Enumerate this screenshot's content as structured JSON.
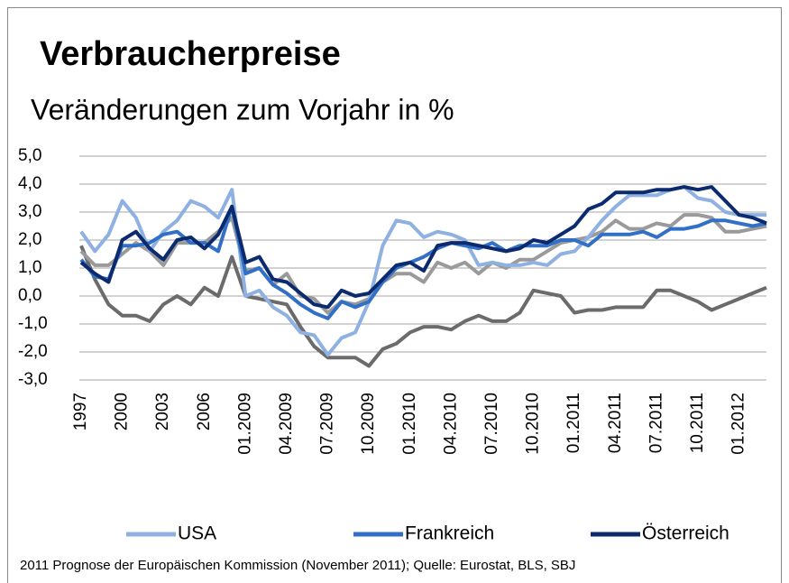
{
  "chart_data": {
    "type": "line",
    "title": "Verbraucherpreise",
    "subtitle": "Veränderungen zum Vorjahr in %",
    "footnote": "2011 Prognose der Europäischen Kommission (November 2011); Quelle: Eurostat, BLS, SBJ",
    "categories": [
      "1997",
      null,
      null,
      "2000",
      null,
      null,
      "2003",
      null,
      null,
      "2006",
      null,
      null,
      "01.2009",
      null,
      null,
      "04.2009",
      null,
      null,
      "07.2009",
      null,
      null,
      "10.2009",
      null,
      null,
      "01.2010",
      null,
      null,
      "04.2010",
      null,
      null,
      "07.2010",
      null,
      null,
      "10.2010",
      null,
      null,
      "01.2011",
      null,
      null,
      "04.2011",
      null,
      null,
      "07.2011",
      null,
      null,
      "10.2011",
      null,
      null,
      "01.2012",
      null,
      null
    ],
    "ylim": [
      -3,
      5
    ],
    "yticks": [
      {
        "value": -3,
        "label": "-3,0"
      },
      {
        "value": -2,
        "label": "-2,0"
      },
      {
        "value": -1,
        "label": "-1,0"
      },
      {
        "value": 0,
        "label": "0,0"
      },
      {
        "value": 1,
        "label": "1,0"
      },
      {
        "value": 2,
        "label": "2,0"
      },
      {
        "value": 3,
        "label": "3,0"
      },
      {
        "value": 4,
        "label": "4,0"
      },
      {
        "value": 5,
        "label": "5,0"
      }
    ],
    "grid": true,
    "legend": "bottom",
    "series": [
      {
        "color": "#6b6b6b",
        "values": [
          1.8,
          0.6,
          -0.3,
          -0.7,
          -0.7,
          -0.9,
          -0.3,
          0.0,
          -0.3,
          0.3,
          0.0,
          1.4,
          0.0,
          -0.1,
          -0.2,
          -0.3,
          -1.1,
          -1.8,
          -2.2,
          -2.2,
          -2.2,
          -2.5,
          -1.9,
          -1.7,
          -1.3,
          -1.1,
          -1.1,
          -1.2,
          -0.9,
          -0.7,
          -0.9,
          -0.9,
          -0.6,
          0.2,
          0.1,
          0.0,
          -0.6,
          -0.5,
          -0.5,
          -0.4,
          -0.4,
          -0.4,
          0.2,
          0.2,
          0.0,
          -0.2,
          -0.5,
          -0.3,
          -0.1,
          0.1,
          0.3
        ]
      },
      {
        "color": "#9a9a9a",
        "values": [
          1.6,
          1.1,
          1.1,
          1.5,
          1.9,
          1.6,
          1.1,
          1.9,
          1.9,
          1.9,
          2.3,
          2.8,
          0.9,
          1.0,
          0.4,
          0.8,
          0.0,
          -0.1,
          -0.6,
          -0.2,
          -0.3,
          -0.1,
          0.5,
          0.8,
          0.8,
          0.5,
          1.2,
          1.0,
          1.2,
          0.8,
          1.2,
          1.0,
          1.3,
          1.3,
          1.6,
          1.9,
          2.0,
          2.1,
          2.3,
          2.7,
          2.4,
          2.4,
          2.6,
          2.5,
          2.9,
          2.9,
          2.8,
          2.3,
          2.3,
          2.4,
          2.5
        ]
      },
      {
        "name": "USA",
        "color": "#8fb1e2",
        "values": [
          2.3,
          1.6,
          2.2,
          3.4,
          2.8,
          1.6,
          2.3,
          2.7,
          3.4,
          3.2,
          2.8,
          3.8,
          0.0,
          0.2,
          -0.4,
          -0.7,
          -1.3,
          -1.4,
          -2.1,
          -1.5,
          -1.3,
          -0.2,
          1.8,
          2.7,
          2.6,
          2.1,
          2.3,
          2.2,
          2.0,
          1.1,
          1.2,
          1.1,
          1.1,
          1.2,
          1.1,
          1.5,
          1.6,
          2.1,
          2.7,
          3.2,
          3.6,
          3.6,
          3.6,
          3.8,
          3.9,
          3.5,
          3.4,
          3.0,
          2.9,
          2.9,
          2.9
        ]
      },
      {
        "name": "Frankreich",
        "color": "#3170c6",
        "values": [
          1.3,
          0.7,
          0.6,
          1.8,
          1.8,
          1.9,
          2.2,
          2.3,
          1.9,
          1.9,
          1.6,
          3.2,
          0.8,
          1.0,
          0.4,
          0.1,
          -0.3,
          -0.6,
          -0.8,
          -0.2,
          -0.4,
          -0.2,
          0.5,
          1.0,
          1.2,
          1.4,
          1.7,
          1.9,
          1.8,
          1.7,
          1.9,
          1.6,
          1.8,
          1.8,
          1.8,
          2.0,
          2.0,
          1.8,
          2.2,
          2.2,
          2.2,
          2.3,
          2.1,
          2.4,
          2.4,
          2.5,
          2.7,
          2.7,
          2.6,
          2.5,
          2.6
        ]
      },
      {
        "name": "Österreich",
        "color": "#0c2a6e",
        "values": [
          1.2,
          0.8,
          0.5,
          2.0,
          2.3,
          1.7,
          1.3,
          2.0,
          2.1,
          1.7,
          2.2,
          3.2,
          1.2,
          1.4,
          0.6,
          0.5,
          0.1,
          -0.3,
          -0.4,
          0.2,
          0.0,
          0.1,
          0.6,
          1.1,
          1.2,
          0.9,
          1.8,
          1.9,
          1.9,
          1.8,
          1.7,
          1.6,
          1.7,
          2.0,
          1.9,
          2.2,
          2.5,
          3.1,
          3.3,
          3.7,
          3.7,
          3.7,
          3.8,
          3.8,
          3.9,
          3.8,
          3.9,
          3.4,
          2.9,
          2.8,
          2.6
        ]
      }
    ]
  }
}
